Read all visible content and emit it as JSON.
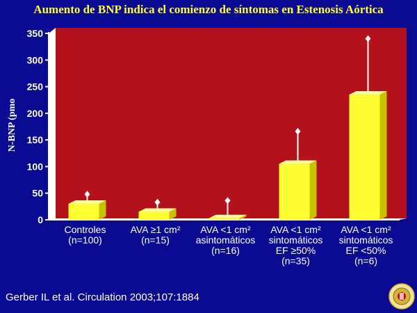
{
  "title": "Aumento de BNP indica el comienzo de síntomas en Estenosis Aórtica",
  "source": "Gerber IL et al. Circulation 2003;107:1884",
  "colors": {
    "background": "#0b0a93",
    "plot_area": "#b3121c",
    "bar": "#ffff33",
    "title": "#ffff33"
  },
  "chart_data": {
    "type": "bar",
    "ylabel": "N-BNP (pmo",
    "ylim": [
      0,
      350
    ],
    "yticks": [
      0,
      50,
      100,
      150,
      200,
      250,
      300,
      350
    ],
    "categories": [
      "Controles\n(n=100)",
      "AVA ≥1 cm²\n(n=15)",
      "AVA <1 cm²\nasintomáticos\n(n=16)",
      "AVA <1 cm²\nsintomáticos\nEF  ≥50%\n(n=35)",
      "AVA <1 cm²\nsintomáticos\nEF  <50%\n(n=6)"
    ],
    "values": [
      30,
      15,
      3,
      105,
      235
    ],
    "error_upper": [
      48,
      33,
      36,
      166,
      340
    ],
    "grid": false,
    "legend": "none"
  }
}
